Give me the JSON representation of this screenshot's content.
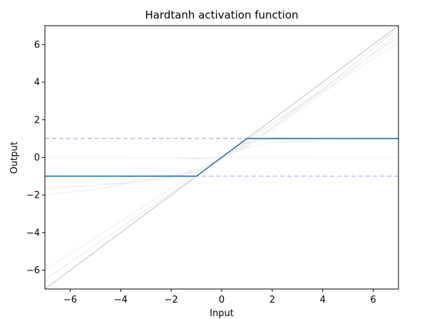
{
  "chart_data": {
    "type": "line",
    "title": "Hardtanh activation function",
    "xlabel": "Input",
    "ylabel": "Output",
    "xlim": [
      -7,
      7
    ],
    "ylim": [
      -7,
      7
    ],
    "xticks": [
      -6,
      -4,
      -2,
      0,
      2,
      4,
      6
    ],
    "yticks": [
      -6,
      -4,
      -2,
      0,
      2,
      4,
      6
    ],
    "xtick_labels": [
      "−6",
      "−4",
      "−2",
      "0",
      "2",
      "4",
      "6"
    ],
    "ytick_labels": [
      "−6",
      "−4",
      "−2",
      "0",
      "2",
      "4",
      "6"
    ],
    "grid": false,
    "legend": "none",
    "series": [
      {
        "x": [
          -7,
          -1,
          1,
          7
        ],
        "y": [
          -1,
          -1,
          1,
          1
        ],
        "color": "#1f77b4",
        "role": "main"
      },
      {
        "x": [
          -7,
          7
        ],
        "y": [
          1,
          1
        ],
        "color": "#aab0e6",
        "style": "dashed",
        "role": "reference"
      },
      {
        "x": [
          -7,
          7
        ],
        "y": [
          -1,
          -1
        ],
        "color": "#aab0e6",
        "style": "dashed",
        "role": "reference"
      },
      {
        "x": [
          -7,
          7
        ],
        "y": [
          -7,
          7
        ],
        "color": "#c8c8c8",
        "role": "background"
      },
      {
        "x": [
          -7,
          7
        ],
        "y": [
          -6.5,
          6.4
        ],
        "color": "#ececec",
        "role": "background"
      },
      {
        "x": [
          -7,
          7
        ],
        "y": [
          -6.0,
          6.1
        ],
        "color": "#efefef",
        "role": "background"
      },
      {
        "x": [
          -7,
          -4,
          -2,
          -1,
          0,
          1,
          2,
          4,
          7
        ],
        "y": [
          0,
          0,
          -0.02,
          -0.08,
          0,
          0.6,
          1.6,
          3.6,
          6.9
        ],
        "color": "#e6e6e6",
        "role": "background"
      },
      {
        "x": [
          -7,
          -4,
          -2,
          -1,
          0,
          1,
          2,
          4,
          7
        ],
        "y": [
          -1.7,
          -1.35,
          -1.05,
          -0.8,
          0,
          0.8,
          1.05,
          1.0,
          1.0
        ],
        "color": "#eeeeee",
        "role": "background"
      },
      {
        "x": [
          -7,
          -4,
          -2,
          -1,
          0,
          1,
          2,
          4,
          7
        ],
        "y": [
          -1.0,
          -1.0,
          -0.96,
          -0.76,
          0,
          0.76,
          0.96,
          1.0,
          1.0
        ],
        "color": "#efefef",
        "role": "background"
      },
      {
        "x": [
          -7,
          -4,
          -2,
          -1,
          0,
          1,
          2,
          4,
          7
        ],
        "y": [
          -1.6,
          -1.4,
          -1.1,
          -0.6,
          0,
          0.5,
          0.8,
          0.9,
          0.95
        ],
        "color": "#f0f0f0",
        "role": "background"
      },
      {
        "x": [
          -7,
          -4,
          -2,
          0,
          2,
          4,
          7
        ],
        "y": [
          0,
          0,
          -0.02,
          0,
          0.01,
          0,
          0
        ],
        "color": "#f2f2f2",
        "role": "background"
      },
      {
        "x": [
          -7,
          -5,
          -3,
          -2,
          -1,
          0,
          1,
          2,
          4,
          7
        ],
        "y": [
          -2.0,
          -1.7,
          -1.2,
          -1.0,
          -0.7,
          -0.1,
          0.7,
          1.5,
          3.4,
          6.6
        ],
        "color": "#ececec",
        "role": "background"
      }
    ]
  }
}
